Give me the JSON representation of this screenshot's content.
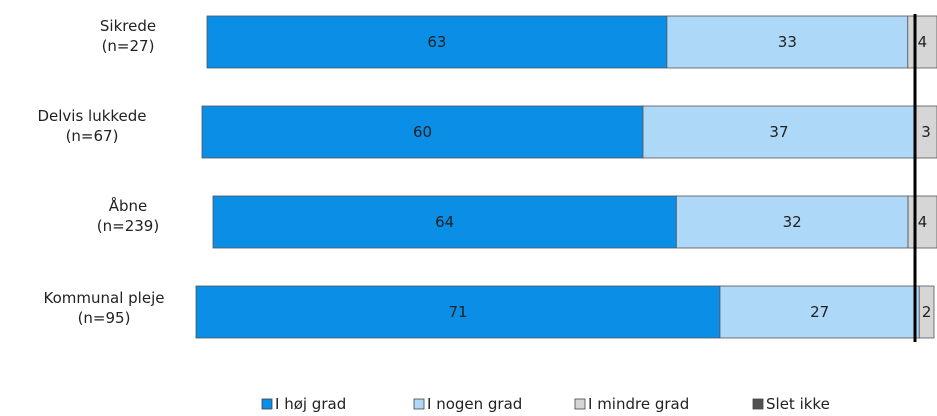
{
  "chart_data": {
    "type": "bar",
    "orientation": "horizontal",
    "stacked": true,
    "categories": [
      [
        "Sikrede",
        "(n=27)"
      ],
      [
        "Delvis lukkede",
        "(n=67)"
      ],
      [
        "Åbne",
        "(n=239)"
      ],
      [
        "Kommunal pleje",
        "(n=95)"
      ]
    ],
    "series": [
      {
        "name": "I høj grad",
        "values": [
          63,
          60,
          64,
          71
        ],
        "color": "#0a8ee6"
      },
      {
        "name": "I nogen grad",
        "values": [
          33,
          37,
          32,
          27
        ],
        "color": "#aed8f7"
      },
      {
        "name": "I mindre grad",
        "values": [
          4,
          3,
          4,
          2
        ],
        "color": "#d6d6d6"
      },
      {
        "name": "Slet ikke",
        "values": [
          0,
          0,
          0,
          0
        ],
        "color": "#505050"
      }
    ],
    "reference_line_at": 96,
    "legend_position": "bottom",
    "grid": false
  }
}
